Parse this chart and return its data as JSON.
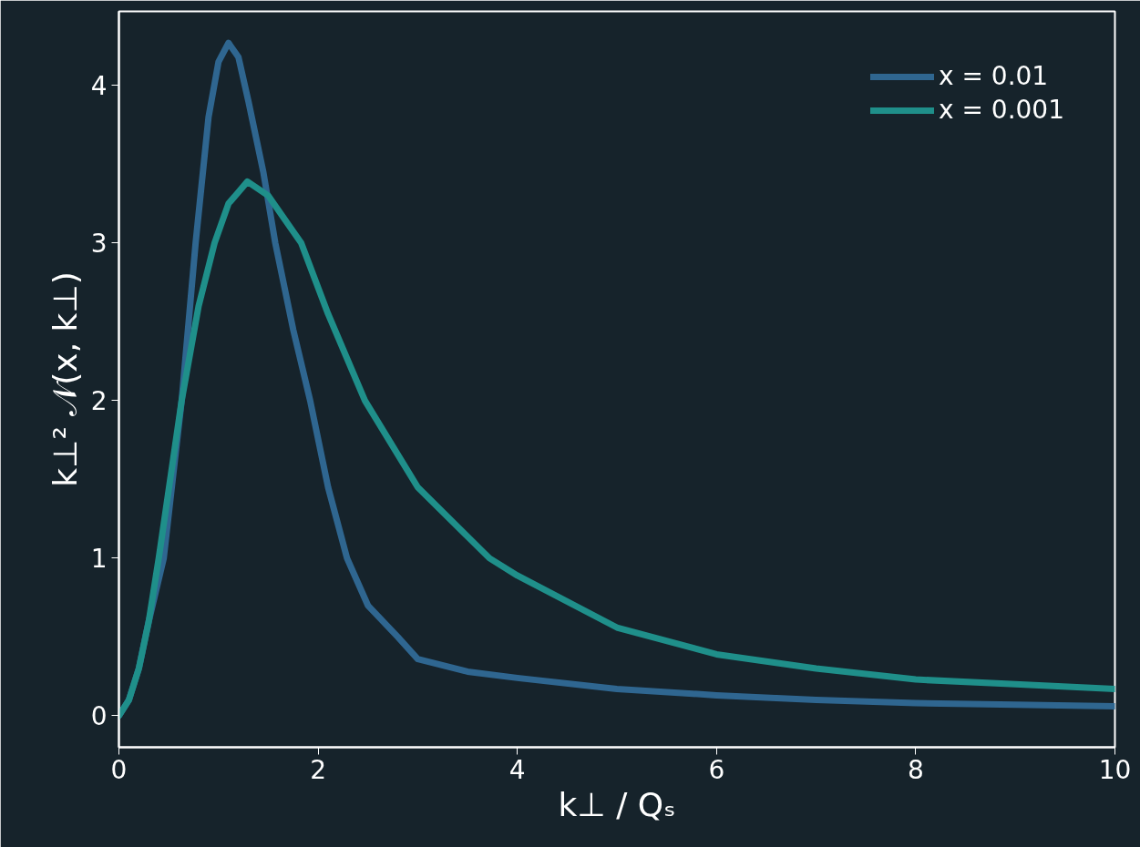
{
  "chart_data": {
    "type": "line",
    "xlabel": "k⊥ / Qₛ",
    "ylabel": "k⊥² 𝒩(x, k⊥)",
    "xlim": [
      0,
      10
    ],
    "ylim": [
      -0.2,
      4.47
    ],
    "xticks": [
      0,
      2,
      4,
      6,
      8,
      10
    ],
    "yticks": [
      0,
      1,
      2,
      3,
      4
    ],
    "grid": false,
    "legend": "top right",
    "marker": "none",
    "line_style": "solid",
    "series": [
      {
        "name": "x = 0.01",
        "color": "#2f6690",
        "x": [
          0,
          0.1,
          0.2,
          0.3,
          0.45,
          0.63,
          0.77,
          0.9,
          1.0,
          1.1,
          1.2,
          1.3,
          1.45,
          1.57,
          1.75,
          1.92,
          2.1,
          2.29,
          2.5,
          2.8,
          3.0,
          3.5,
          4.0,
          5.0,
          6.0,
          7.0,
          8.0,
          9.0,
          10.0
        ],
        "values": [
          0,
          0.1,
          0.3,
          0.6,
          1.0,
          2.0,
          3.0,
          3.8,
          4.15,
          4.27,
          4.18,
          3.9,
          3.45,
          3.0,
          2.45,
          2.0,
          1.45,
          1.0,
          0.7,
          0.5,
          0.36,
          0.28,
          0.24,
          0.17,
          0.13,
          0.1,
          0.08,
          0.07,
          0.06
        ]
      },
      {
        "name": "x = 0.001",
        "color": "#1f8f8a",
        "x": [
          0,
          0.1,
          0.2,
          0.3,
          0.4,
          0.63,
          0.8,
          0.96,
          1.1,
          1.29,
          1.5,
          1.83,
          2.1,
          2.47,
          3.0,
          3.72,
          4.0,
          5.0,
          6.0,
          7.0,
          8.0,
          9.0,
          10.0
        ],
        "values": [
          0,
          0.1,
          0.3,
          0.6,
          1.0,
          2.0,
          2.6,
          3.0,
          3.25,
          3.39,
          3.3,
          3.0,
          2.55,
          2.0,
          1.45,
          1.0,
          0.89,
          0.56,
          0.39,
          0.3,
          0.23,
          0.2,
          0.17
        ]
      }
    ]
  }
}
